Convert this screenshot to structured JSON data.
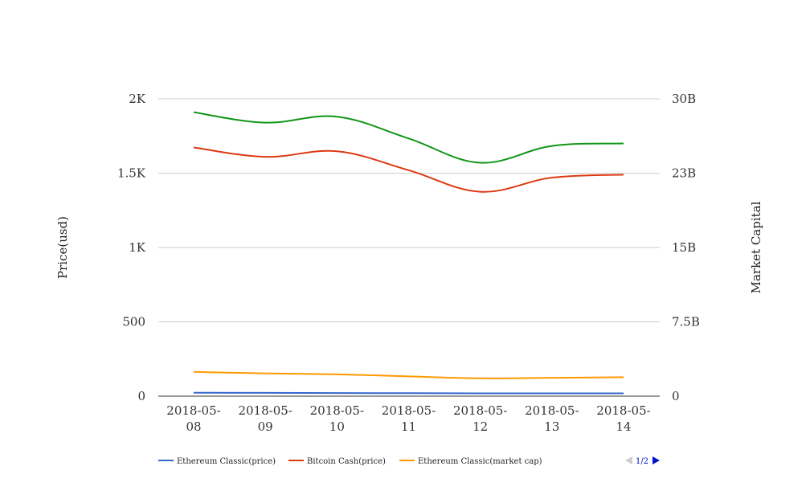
{
  "chart_data": {
    "type": "line",
    "x": [
      "2018-05-08",
      "2018-05-09",
      "2018-05-10",
      "2018-05-11",
      "2018-05-12",
      "2018-05-13",
      "2018-05-14"
    ],
    "x_tick_lines": [
      [
        "2018-05-",
        "08"
      ],
      [
        "2018-05-",
        "09"
      ],
      [
        "2018-05-",
        "10"
      ],
      [
        "2018-05-",
        "11"
      ],
      [
        "2018-05-",
        "12"
      ],
      [
        "2018-05-",
        "13"
      ],
      [
        "2018-05-",
        "14"
      ]
    ],
    "y_left": {
      "label": "Price(usd)",
      "range": [
        0,
        2000
      ],
      "ticks": [
        0,
        500,
        1000,
        1500,
        2000
      ],
      "tick_labels": [
        "0",
        "500",
        "1K",
        "1.5K",
        "2K"
      ]
    },
    "y_right": {
      "label": "Market Capital",
      "range": [
        0,
        30000000000
      ],
      "ticks": [
        0,
        7500000000,
        15000000000,
        22500000000,
        30000000000
      ],
      "tick_labels": [
        "0",
        "7.5B",
        "15B",
        "23B",
        "30B"
      ]
    },
    "grid": true,
    "series": [
      {
        "name": "Ethereum Classic(price)",
        "axis": "left",
        "color": "#3366cc",
        "values": [
          23,
          22,
          21,
          20,
          19,
          19,
          19
        ]
      },
      {
        "name": "Bitcoin Cash(price)",
        "axis": "left",
        "color": "#dc3912",
        "values": [
          1673,
          1610,
          1647,
          1520,
          1375,
          1470,
          1490
        ]
      },
      {
        "name": "Ethereum Classic(market cap)",
        "axis": "right",
        "color": "#ff9900",
        "values": [
          2450000000,
          2300000000,
          2200000000,
          2000000000,
          1800000000,
          1850000000,
          1920000000
        ]
      },
      {
        "name": "",
        "axis": "right",
        "color": "#109618",
        "values": [
          28650000000,
          27600000000,
          28200000000,
          26000000000,
          23550000000,
          25250000000,
          25500000000
        ]
      }
    ],
    "legend": {
      "position": "bottom",
      "page_label": "1/2"
    }
  }
}
